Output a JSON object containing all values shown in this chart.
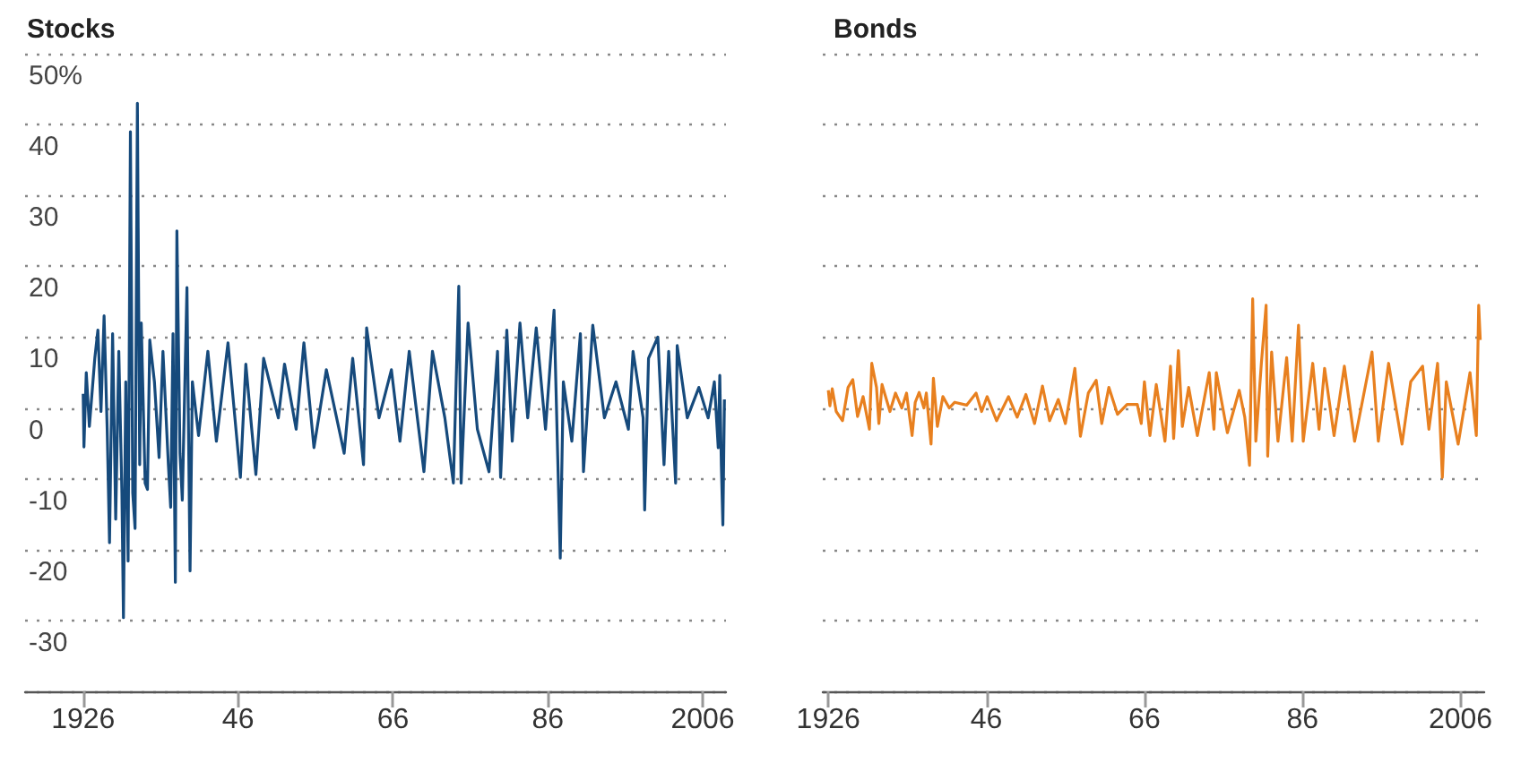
{
  "chart_data": [
    {
      "type": "line",
      "title": "Stocks",
      "xlim": [
        1918.5,
        2009
      ],
      "ylim": [
        -40,
        50
      ],
      "grid": "y",
      "xticks": [
        {
          "value": 1926,
          "label": "1926"
        },
        {
          "value": 1946,
          "label": "46"
        },
        {
          "value": 1966,
          "label": "66"
        },
        {
          "value": 1986,
          "label": "86"
        },
        {
          "value": 2006,
          "label": "2006"
        }
      ],
      "yticks": [
        -30,
        -20,
        -10,
        0,
        10,
        20,
        30,
        40,
        {
          "value": 50,
          "label": "50%"
        }
      ],
      "series": [
        {
          "color": "#164a7c",
          "x": [
            1926.0,
            1926.1,
            1926.4,
            1926.8,
            1927.5,
            1927.9,
            1928.3,
            1928.7,
            1929.1,
            1929.4,
            1929.8,
            1930.2,
            1930.6,
            1931.0,
            1931.2,
            1931.5,
            1931.8,
            1932.1,
            1932.4,
            1932.7,
            1933.0,
            1933.3,
            1933.5,
            1934.0,
            1934.3,
            1934.6,
            1935.2,
            1935.8,
            1936.3,
            1937.0,
            1937.3,
            1937.6,
            1937.9,
            1938.1,
            1938.5,
            1938.8,
            1939.4,
            1939.8,
            1940.1,
            1940.9,
            1942.1,
            1943.2,
            1944.7,
            1946.3,
            1947.0,
            1948.3,
            1949.3,
            1951.2,
            1952.0,
            1953.5,
            1954.5,
            1955.8,
            1957.4,
            1959.7,
            1960.8,
            1962.2,
            1962.6,
            1964.2,
            1965.8,
            1966.9,
            1968.1,
            1970.0,
            1971.1,
            1972.7,
            1973.8,
            1974.5,
            1974.8,
            1975.7,
            1976.9,
            1978.4,
            1979.5,
            1979.9,
            1980.7,
            1981.4,
            1982.4,
            1983.4,
            1984.5,
            1985.7,
            1986.8,
            1987.6,
            1988.0,
            1989.1,
            1990.2,
            1990.6,
            1991.8,
            1993.3,
            1994.8,
            1996.4,
            1997.0,
            1998.3,
            1998.5,
            1999.0,
            2000.2,
            2001.0,
            2001.6,
            2002.5,
            2002.7,
            2004.0,
            2005.5,
            2006.7,
            2007.5,
            2008.0,
            2008.2,
            2008.4,
            2008.6,
            2008.8
          ],
          "values": [
            2,
            -5.5,
            5,
            -2.6,
            7,
            11,
            -0.5,
            13,
            -3,
            -19,
            10.5,
            -15.7,
            8,
            -12,
            -29.6,
            3.7,
            -21.6,
            39,
            -12,
            -17,
            43,
            -8,
            12,
            -10.6,
            -11.5,
            9.6,
            3.7,
            -7,
            8,
            -8,
            -14,
            10.5,
            -24.6,
            25,
            -6.4,
            -13,
            17,
            -23,
            3.7,
            -3.9,
            8,
            -4.7,
            9.2,
            -9.8,
            6.2,
            -9.4,
            7,
            -1.4,
            6.2,
            -3,
            9.2,
            -5.6,
            5.4,
            -6.4,
            7,
            -8,
            11.3,
            -1.4,
            5.4,
            -4.7,
            8,
            -9,
            8,
            -1.4,
            -10.6,
            17.2,
            -10.6,
            12,
            -3,
            -9,
            8,
            -9.8,
            11,
            -4.7,
            12,
            -1.4,
            11.3,
            -3,
            13.8,
            -21.2,
            3.7,
            -4.7,
            10.5,
            -9,
            11.7,
            -1.4,
            3.7,
            -3,
            8,
            -1.4,
            -14.4,
            7,
            10,
            -8,
            8,
            -10.6,
            8.8,
            -1.4,
            2.9,
            -1.4,
            3.7,
            -5.6,
            4.6,
            -8,
            -16.5,
            1.2
          ]
        }
      ]
    },
    {
      "type": "line",
      "title": "Bonds",
      "xlim": [
        1925.3,
        2009
      ],
      "ylim": [
        -40,
        50
      ],
      "grid": "y",
      "tick_labels": "x",
      "xticks": [
        {
          "value": 1926,
          "label": "1926"
        },
        {
          "value": 1946,
          "label": "46"
        },
        {
          "value": 1966,
          "label": "66"
        },
        {
          "value": 1986,
          "label": "86"
        },
        {
          "value": 2006,
          "label": "2006"
        }
      ],
      "yticks": [
        -30,
        -20,
        -10,
        0,
        10,
        20,
        30,
        40,
        50
      ],
      "series": [
        {
          "color": "#e8801f",
          "x": [
            1926.0,
            1926.2,
            1926.5,
            1927.0,
            1927.8,
            1928.5,
            1929.1,
            1929.7,
            1930.4,
            1931.2,
            1931.5,
            1932.1,
            1932.4,
            1932.8,
            1933.8,
            1934.5,
            1935.3,
            1935.9,
            1936.6,
            1937.0,
            1937.5,
            1938.1,
            1938.4,
            1939.0,
            1939.3,
            1939.8,
            1940.5,
            1941.3,
            1942.0,
            1943.5,
            1944.7,
            1945.4,
            1946.1,
            1947.3,
            1948.8,
            1949.9,
            1951.0,
            1952.1,
            1953.1,
            1954.0,
            1955.1,
            1956.0,
            1957.2,
            1957.9,
            1958.9,
            1959.9,
            1960.6,
            1961.5,
            1962.6,
            1963.8,
            1965.1,
            1965.6,
            1966.0,
            1966.7,
            1967.5,
            1968.6,
            1969.3,
            1969.7,
            1970.3,
            1970.8,
            1971.6,
            1972.7,
            1974.2,
            1974.8,
            1975.1,
            1976.5,
            1978.0,
            1978.7,
            1979.3,
            1979.7,
            1980.1,
            1980.8,
            1981.4,
            1981.6,
            1982.1,
            1982.9,
            1984.0,
            1984.7,
            1985.5,
            1986.1,
            1987.3,
            1988.1,
            1988.8,
            1990.0,
            1991.3,
            1992.6,
            1994.8,
            1995.6,
            1996.9,
            1998.6,
            1999.7,
            2001.2,
            2002.0,
            2003.1,
            2003.7,
            2004.2,
            2005.7,
            2007.2,
            2008.0,
            2008.3,
            2008.5
          ],
          "values": [
            2.5,
            0.3,
            2.7,
            -0.5,
            -1.8,
            2.9,
            4,
            -1.2,
            1.6,
            -3,
            6.3,
            2.9,
            -2.2,
            3.3,
            -0.5,
            2.1,
            0,
            2.1,
            -3.9,
            0.8,
            2.2,
            0,
            2.1,
            -5.1,
            4.2,
            -2.6,
            1.6,
            0,
            0.8,
            0.4,
            2.1,
            -0.5,
            1.6,
            -1.8,
            1.6,
            -1.3,
            1.9,
            -2.2,
            3.1,
            -1.8,
            1.2,
            -2.2,
            5.6,
            -4,
            2.1,
            3.9,
            -2.2,
            2.9,
            -0.9,
            0.5,
            0.5,
            -2.2,
            3.7,
            -3.9,
            3.3,
            -4.7,
            5.9,
            -4.3,
            8.1,
            -2.6,
            2.9,
            -3.9,
            5,
            -3,
            5,
            -3.5,
            2.5,
            -1.3,
            -8.1,
            15.4,
            -4.7,
            6.3,
            14.5,
            -6.8,
            7.9,
            -4.7,
            7.1,
            -4.7,
            11.7,
            -4.7,
            6.3,
            -3,
            5.6,
            -3.9,
            5.9,
            -4.7,
            7.9,
            -4.7,
            6.3,
            -5.1,
            3.7,
            5.9,
            -3,
            6.3,
            -9.8,
            3.7,
            -5.1,
            5,
            -3.9,
            14.5,
            9.6
          ]
        }
      ]
    }
  ]
}
